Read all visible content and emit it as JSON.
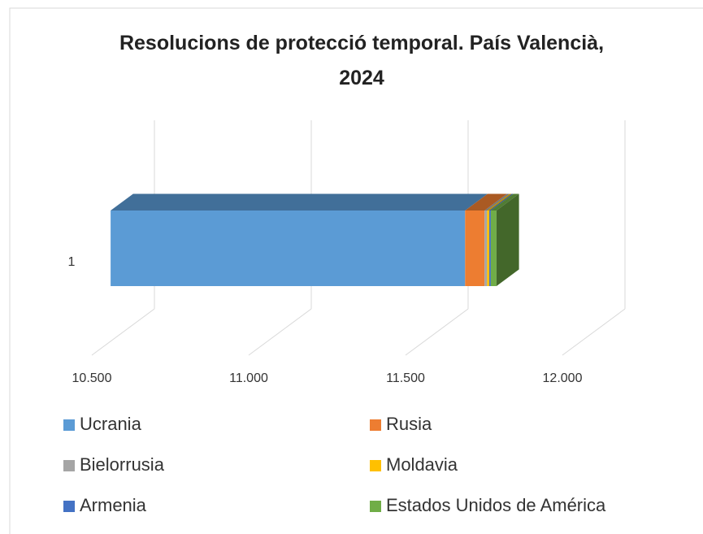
{
  "chart_data": {
    "type": "bar3d_stacked_horizontal",
    "title": "Resolucions de protecció temporal. País Valencià, 2024",
    "categories": [
      "1"
    ],
    "series": [
      {
        "name": "Ucrania",
        "color": "#5b9bd5",
        "values": [
          11630
        ]
      },
      {
        "name": "Rusia",
        "color": "#ed7d31",
        "values": [
          62
        ]
      },
      {
        "name": "Bielorrusia",
        "color": "#a5a5a5",
        "values": [
          8
        ]
      },
      {
        "name": "Moldavia",
        "color": "#ffc000",
        "values": [
          7
        ]
      },
      {
        "name": "Armenia",
        "color": "#4472c4",
        "values": [
          5
        ]
      },
      {
        "name": "Estados Unidos de América",
        "color": "#70ad47",
        "values": [
          18
        ]
      }
    ],
    "xlim": [
      10500,
      12000
    ],
    "xticks": [
      {
        "value": 10500,
        "label": "10.500"
      },
      {
        "value": 11000,
        "label": "11.000"
      },
      {
        "value": 11500,
        "label": "11.500"
      },
      {
        "value": 12000,
        "label": "12.000"
      }
    ],
    "grid": true
  }
}
